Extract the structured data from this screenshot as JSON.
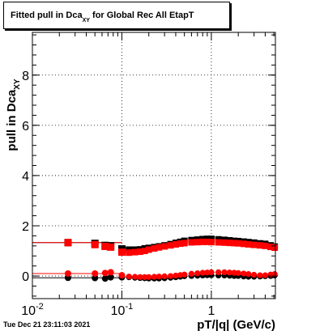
{
  "title": {
    "prefix": "Fitted pull in Dca",
    "subscript": "XY",
    "suffix": " for Global Rec All EtapT"
  },
  "timestamp": "Tue Dec 21 23:11:03 2021",
  "chart_data": {
    "type": "scatter",
    "title": "Fitted pull in Dca_XY for Global Rec All EtapT",
    "xlabel": "pT/|q| (GeV/c)",
    "ylabel_main": "pull in Dca",
    "ylabel_sub": "XY",
    "xscale": "log",
    "xlim": [
      0.01,
      5.2
    ],
    "ylim": [
      -0.9,
      9.7
    ],
    "grid": true,
    "x_ticks": [
      {
        "value": 0.01,
        "label": "10",
        "exp": "-2"
      },
      {
        "value": 0.1,
        "label": "10",
        "exp": "-1"
      },
      {
        "value": 1,
        "label": "1",
        "exp": ""
      }
    ],
    "y_ticks": [
      {
        "value": 0,
        "label": "0"
      },
      {
        "value": 2,
        "label": "2"
      },
      {
        "value": 4,
        "label": "4"
      },
      {
        "value": 6,
        "label": "6"
      },
      {
        "value": 8,
        "label": "8"
      }
    ],
    "series": [
      {
        "color": "#000000",
        "marker": "circle",
        "x": [
          0.025,
          0.05,
          0.065,
          0.075,
          0.1,
          0.12,
          0.14,
          0.16,
          0.18,
          0.2,
          0.23,
          0.26,
          0.3,
          0.35,
          0.4,
          0.45,
          0.5,
          0.6,
          0.7,
          0.8,
          0.9,
          1.0,
          1.2,
          1.4,
          1.6,
          1.8,
          2.0,
          2.3,
          2.6,
          3.0,
          3.5,
          4.0,
          4.6,
          5.1
        ],
        "y": [
          -0.07,
          -0.08,
          -0.1,
          -0.05,
          -0.05,
          -0.05,
          -0.07,
          -0.08,
          -0.09,
          -0.1,
          -0.1,
          -0.1,
          -0.09,
          -0.07,
          -0.05,
          -0.03,
          -0.01,
          0.0,
          0.01,
          0.02,
          0.03,
          0.03,
          0.02,
          0.02,
          0.01,
          0.0,
          0.0,
          -0.02,
          -0.03,
          -0.03,
          -0.02,
          -0.01,
          0.0,
          0.02
        ]
      },
      {
        "color": "#ff0000",
        "marker": "circle",
        "x": [
          0.025,
          0.05,
          0.065,
          0.075,
          0.1,
          0.12,
          0.14,
          0.16,
          0.18,
          0.2,
          0.23,
          0.26,
          0.3,
          0.35,
          0.4,
          0.45,
          0.5,
          0.6,
          0.7,
          0.8,
          0.9,
          1.0,
          1.2,
          1.4,
          1.6,
          1.8,
          2.0,
          2.3,
          2.6,
          3.0,
          3.5,
          4.0,
          4.6,
          5.1
        ],
        "y": [
          0.1,
          0.1,
          0.12,
          0.15,
          0.03,
          -0.02,
          -0.03,
          -0.04,
          -0.04,
          -0.04,
          -0.03,
          -0.02,
          -0.01,
          0.0,
          0.02,
          0.04,
          0.06,
          0.09,
          0.11,
          0.13,
          0.14,
          0.15,
          0.15,
          0.15,
          0.14,
          0.13,
          0.12,
          0.1,
          0.08,
          0.05,
          0.03,
          0.03,
          0.06,
          0.08
        ]
      },
      {
        "color": "#000000",
        "marker": "square",
        "x": [
          0.025,
          0.05,
          0.065,
          0.075,
          0.1,
          0.12,
          0.14,
          0.16,
          0.18,
          0.2,
          0.23,
          0.26,
          0.3,
          0.35,
          0.4,
          0.45,
          0.5,
          0.6,
          0.7,
          0.8,
          0.9,
          1.0,
          1.2,
          1.4,
          1.6,
          1.8,
          2.0,
          2.3,
          2.6,
          3.0,
          3.5,
          4.0,
          4.6,
          5.1
        ],
        "y": [
          1.33,
          1.3,
          1.22,
          1.2,
          1.08,
          1.05,
          1.05,
          1.06,
          1.1,
          1.12,
          1.15,
          1.18,
          1.22,
          1.27,
          1.32,
          1.36,
          1.4,
          1.43,
          1.45,
          1.47,
          1.48,
          1.48,
          1.46,
          1.44,
          1.42,
          1.4,
          1.39,
          1.37,
          1.35,
          1.33,
          1.3,
          1.28,
          1.22,
          1.17
        ]
      },
      {
        "color": "#ff0000",
        "marker": "square",
        "x": [
          0.025,
          0.05,
          0.065,
          0.075,
          0.1,
          0.12,
          0.14,
          0.16,
          0.18,
          0.2,
          0.23,
          0.26,
          0.3,
          0.35,
          0.4,
          0.45,
          0.5,
          0.6,
          0.7,
          0.8,
          0.9,
          1.0,
          1.2,
          1.4,
          1.6,
          1.8,
          2.0,
          2.3,
          2.6,
          3.0,
          3.5,
          4.0,
          4.6,
          5.1
        ],
        "y": [
          1.33,
          1.25,
          1.18,
          1.15,
          0.95,
          0.93,
          0.95,
          0.97,
          1.0,
          1.05,
          1.1,
          1.14,
          1.18,
          1.22,
          1.26,
          1.29,
          1.31,
          1.34,
          1.35,
          1.36,
          1.36,
          1.35,
          1.34,
          1.33,
          1.32,
          1.31,
          1.3,
          1.28,
          1.26,
          1.24,
          1.22,
          1.2,
          1.16,
          1.13
        ]
      }
    ]
  }
}
